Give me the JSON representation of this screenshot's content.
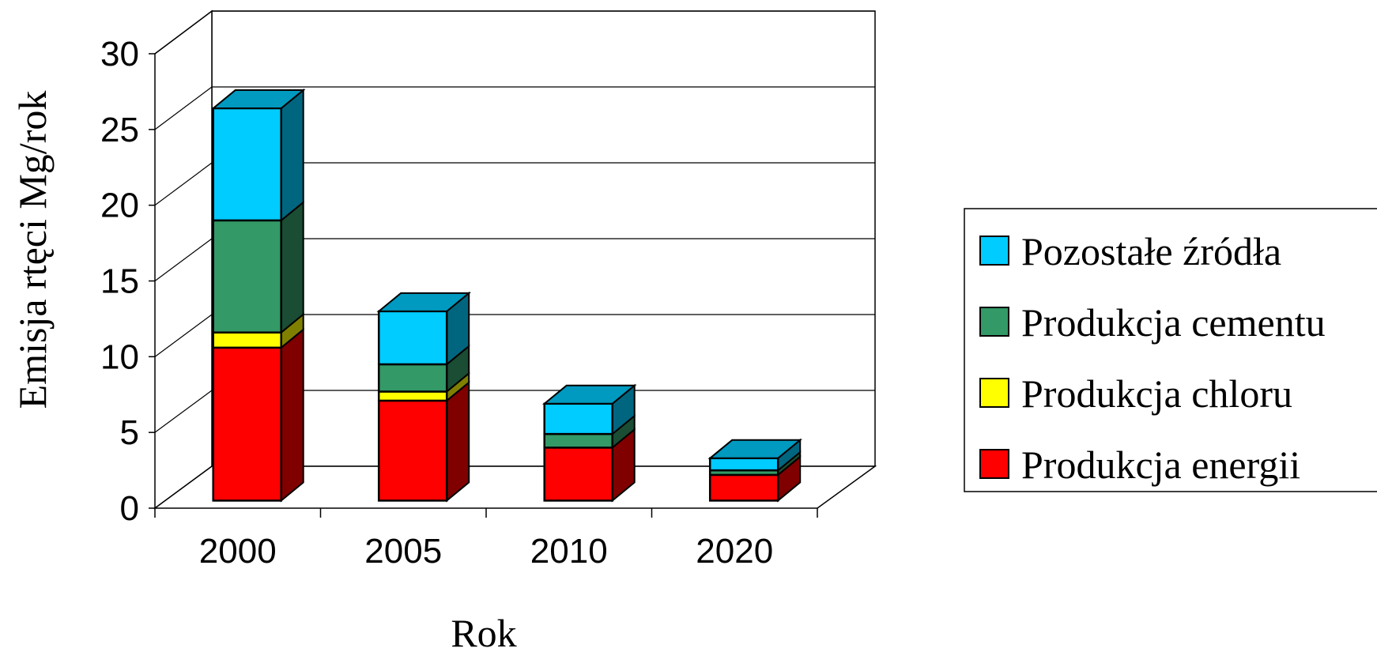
{
  "chart_data": {
    "type": "bar",
    "stacked": true,
    "three_d": true,
    "categories": [
      "2000",
      "2005",
      "2010",
      "2020"
    ],
    "series": [
      {
        "name": "Produkcja energii",
        "color": "#ff0000",
        "values": [
          10.1,
          6.6,
          3.5,
          1.7
        ]
      },
      {
        "name": "Produkcja chloru",
        "color": "#ffff00",
        "values": [
          1.0,
          0.6,
          0.0,
          0.0
        ]
      },
      {
        "name": "Produkcja cementu",
        "color": "#339966",
        "values": [
          7.4,
          1.8,
          0.9,
          0.3
        ]
      },
      {
        "name": "Pozostałe źródła",
        "color": "#00ccff",
        "values": [
          7.4,
          3.5,
          2.0,
          0.8
        ]
      }
    ],
    "legend_order": [
      "Pozostałe źródła",
      "Produkcja cementu",
      "Produkcja chloru",
      "Produkcja energii"
    ],
    "yticks": [
      "0",
      "5",
      "10",
      "15",
      "20",
      "25",
      "30"
    ],
    "ylim": [
      0,
      30
    ],
    "xlabel": "Rok",
    "ylabel": "Emisja rtęci Mg/rok",
    "grid": true,
    "legend_position": "right"
  }
}
